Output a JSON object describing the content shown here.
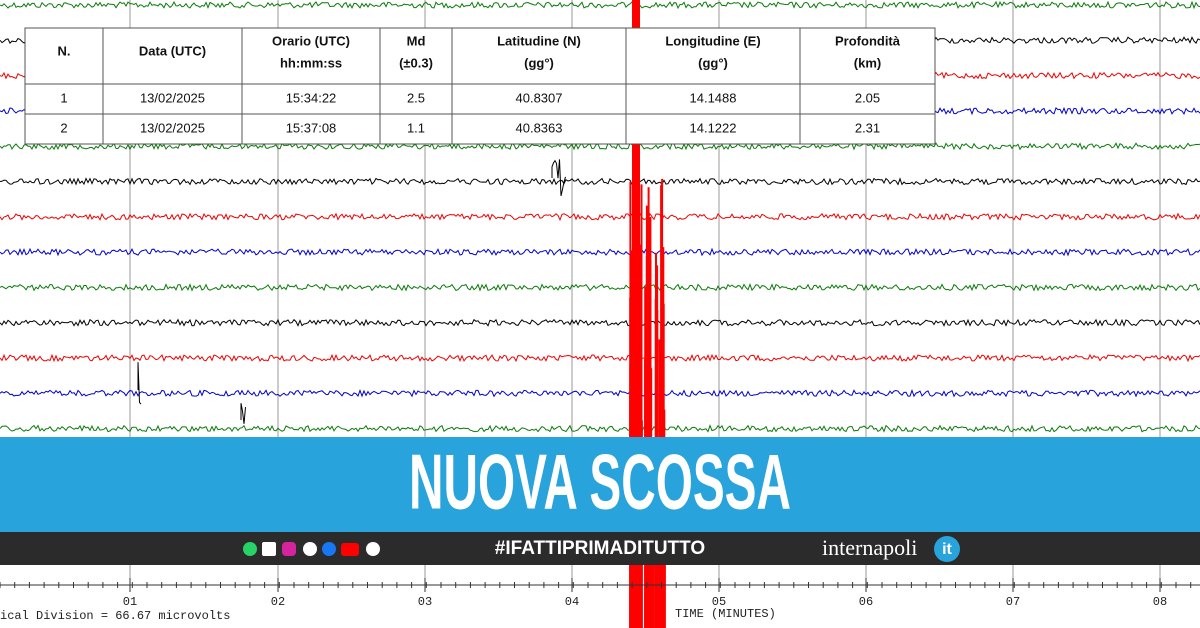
{
  "table": {
    "headers": [
      [
        "N."
      ],
      [
        "Data (UTC)"
      ],
      [
        "Orario (UTC)",
        "hh:mm:ss"
      ],
      [
        "Md",
        "(±0.3)"
      ],
      [
        "Latitudine (N)",
        "(gg°)"
      ],
      [
        "Longitudine (E)",
        "(gg°)"
      ],
      [
        "Profondità",
        "(km)"
      ]
    ],
    "rows": [
      [
        "1",
        "13/02/2025",
        "15:34:22",
        "2.5",
        "40.8307",
        "14.1488",
        "2.05"
      ],
      [
        "2",
        "13/02/2025",
        "15:37:08",
        "1.1",
        "40.8363",
        "14.1222",
        "2.31"
      ]
    ]
  },
  "banner": {
    "title": "NUOVA SCOSSA"
  },
  "footer": {
    "hashtag": "#IFATTIPRIMADITUTTO",
    "logo": "internapoli",
    "logo_badge": "it"
  },
  "seismogram": {
    "time_labels": [
      "01",
      "02",
      "03",
      "04",
      "05",
      "06",
      "07",
      "08"
    ],
    "axis_title": "TIME (MINUTES)",
    "scale_note": "ical Division =   66.67 microvolts"
  }
}
